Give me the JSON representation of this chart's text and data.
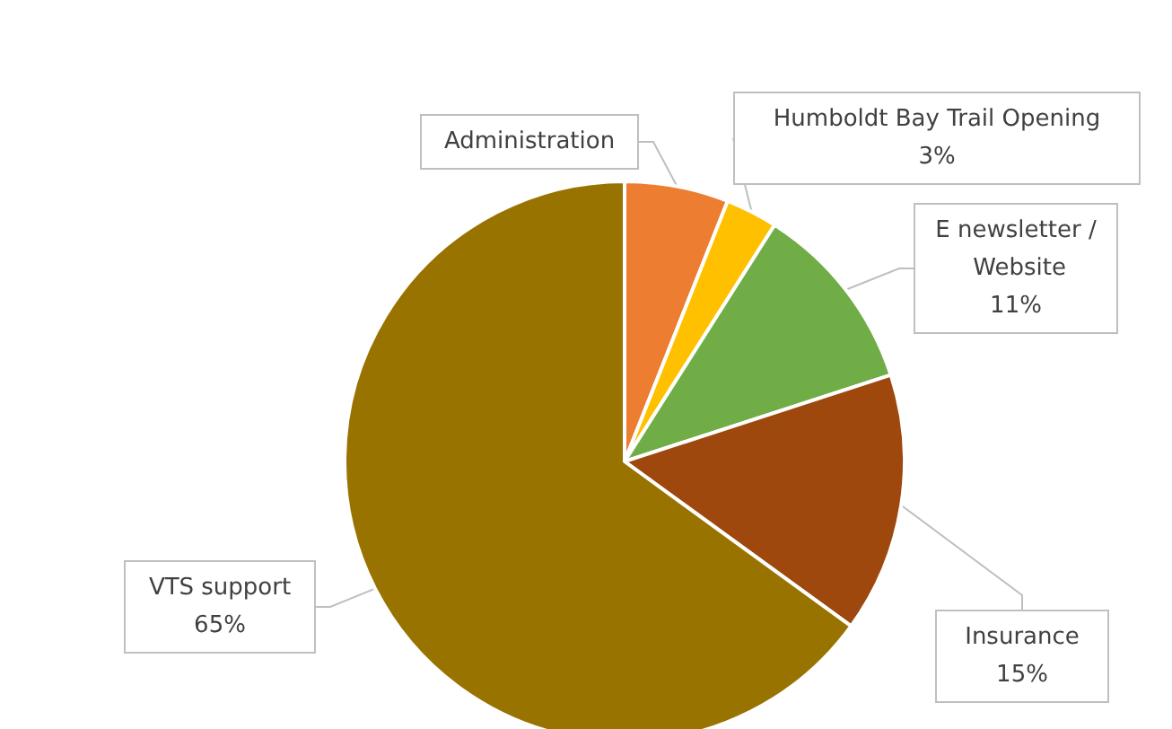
{
  "chart_data": {
    "type": "pie",
    "categories": [
      "Administration",
      "Humboldt Bay Trail Opening",
      "E newsletter / Website",
      "Insurance",
      "VTS support"
    ],
    "values": [
      6,
      3,
      11,
      15,
      65
    ],
    "colors": [
      "#ed7d31",
      "#ffc000",
      "#70ad47",
      "#9e480e",
      "#997300"
    ],
    "value_labels": [
      null,
      "3%",
      "11%",
      "15%",
      "65%"
    ],
    "legend": false
  }
}
